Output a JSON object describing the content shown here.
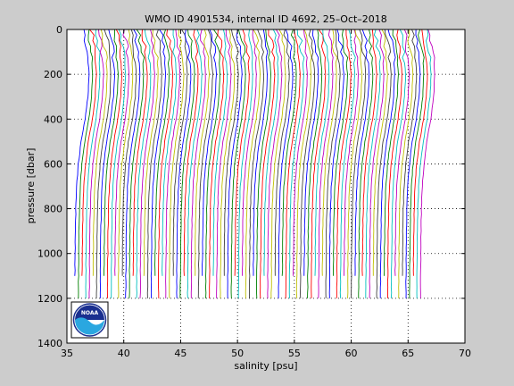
{
  "chart_data": {
    "type": "line",
    "title": "WMO ID 4901534, internal ID 4692, 25–Oct–2018",
    "xlabel": "salinity [psu]",
    "ylabel": "pressure [dbar]",
    "xlim": [
      35,
      70
    ],
    "ylim": [
      0,
      1400
    ],
    "y_reversed": true,
    "x_ticks": [
      35,
      40,
      45,
      50,
      55,
      60,
      65,
      70
    ],
    "y_ticks": [
      0,
      200,
      400,
      600,
      800,
      1000,
      1200,
      1400
    ],
    "grid": true,
    "grid_style": "dotted",
    "profiles": {
      "count": 96,
      "first_surface_salinity": 36.5,
      "salinity_offset_step": 0.32,
      "shape": {
        "pressure": [
          0,
          100,
          200,
          300,
          400,
          500,
          600,
          700,
          800,
          900,
          1000,
          1100,
          1200
        ],
        "relative_salinity": [
          0.0,
          0.3,
          0.45,
          0.35,
          0.1,
          -0.25,
          -0.5,
          -0.65,
          -0.72,
          -0.76,
          -0.78,
          -0.8,
          -0.81
        ]
      },
      "colors": [
        "#0000ff",
        "#008000",
        "#ff0000",
        "#00bfbf",
        "#bf00bf",
        "#bfbf00",
        "#404040"
      ],
      "max_pressure_pattern": [
        1100,
        1200,
        1100,
        1200,
        1200,
        1100,
        1200,
        1200,
        1100,
        1200,
        1200
      ]
    }
  },
  "logo": {
    "text": "NOAA",
    "ring_color": "#ffffff",
    "sky_color": "#1a2f8f",
    "water_color": "#2aa7e0"
  },
  "colors": {
    "figure_background": "#cccccc",
    "axes_background": "#ffffff"
  }
}
